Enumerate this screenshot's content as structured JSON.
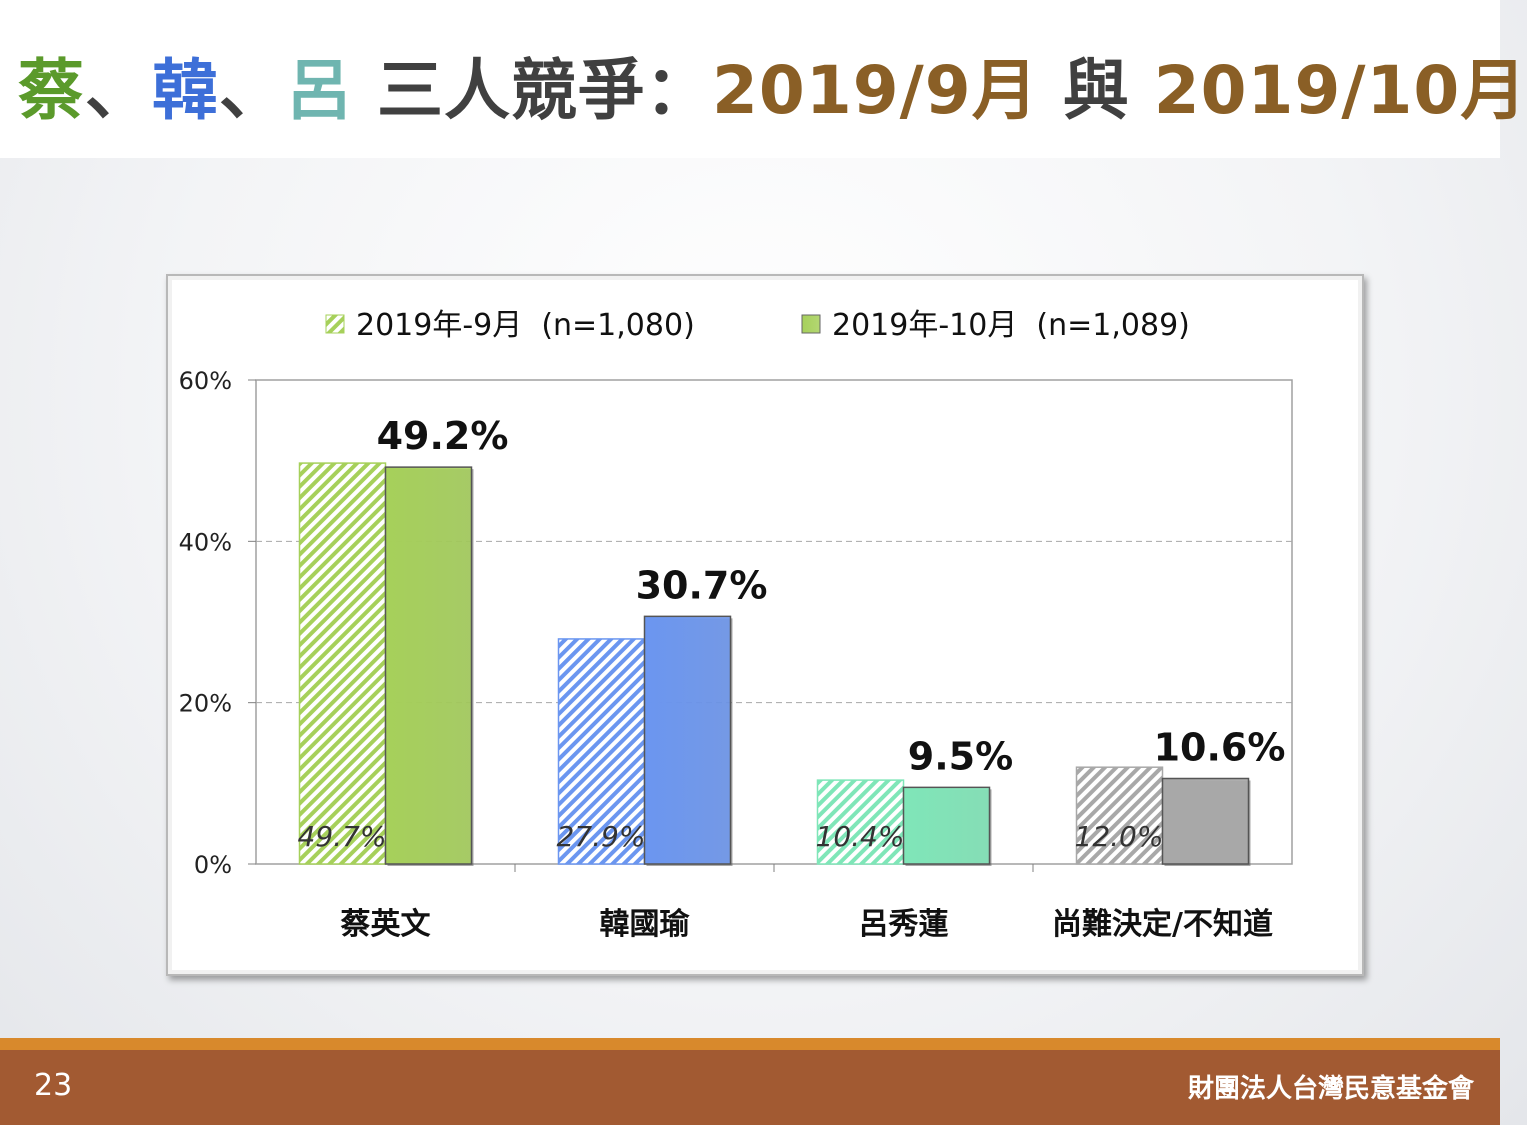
{
  "slide": {
    "title_parts": [
      {
        "text": "蔡",
        "color": "#5b9a2b"
      },
      {
        "text": "、",
        "color": "#404040"
      },
      {
        "text": "韓",
        "color": "#3d6fd8"
      },
      {
        "text": "、",
        "color": "#404040"
      },
      {
        "text": "呂",
        "color": "#6fb5b0"
      },
      {
        "text": " 三人競爭：",
        "color": "#404040"
      },
      {
        "text": "2019/9月",
        "color": "#8a5f26"
      },
      {
        "text": " 與 ",
        "color": "#404040"
      },
      {
        "text": "2019/10月",
        "color": "#8a5f26"
      }
    ],
    "page_number": "23",
    "organization": "財團法人台灣民意基金會"
  },
  "chart_data": {
    "type": "bar",
    "categories": [
      "蔡英文",
      "韓國瑜",
      "呂秀蓮",
      "尚難決定/不知道"
    ],
    "series": [
      {
        "name": "2019年-9月  (n=1,080)",
        "values": [
          49.7,
          27.9,
          10.4,
          12.0
        ],
        "labels": [
          "49.7%",
          "27.9%",
          "10.4%",
          "12.0%"
        ],
        "style": "hatched"
      },
      {
        "name": "2019年-10月  (n=1,089)",
        "values": [
          49.2,
          30.7,
          9.5,
          10.6
        ],
        "labels": [
          "49.2%",
          "30.7%",
          "9.5%",
          "10.6%"
        ],
        "style": "solid"
      }
    ],
    "category_colors": [
      "#a6d05a",
      "#6b96f0",
      "#7fe6b8",
      "#a8a8a8"
    ],
    "yticks": [
      "0%",
      "20%",
      "40%",
      "60%"
    ],
    "ylim": [
      0,
      60
    ],
    "grid": true,
    "legend_position": "top"
  }
}
